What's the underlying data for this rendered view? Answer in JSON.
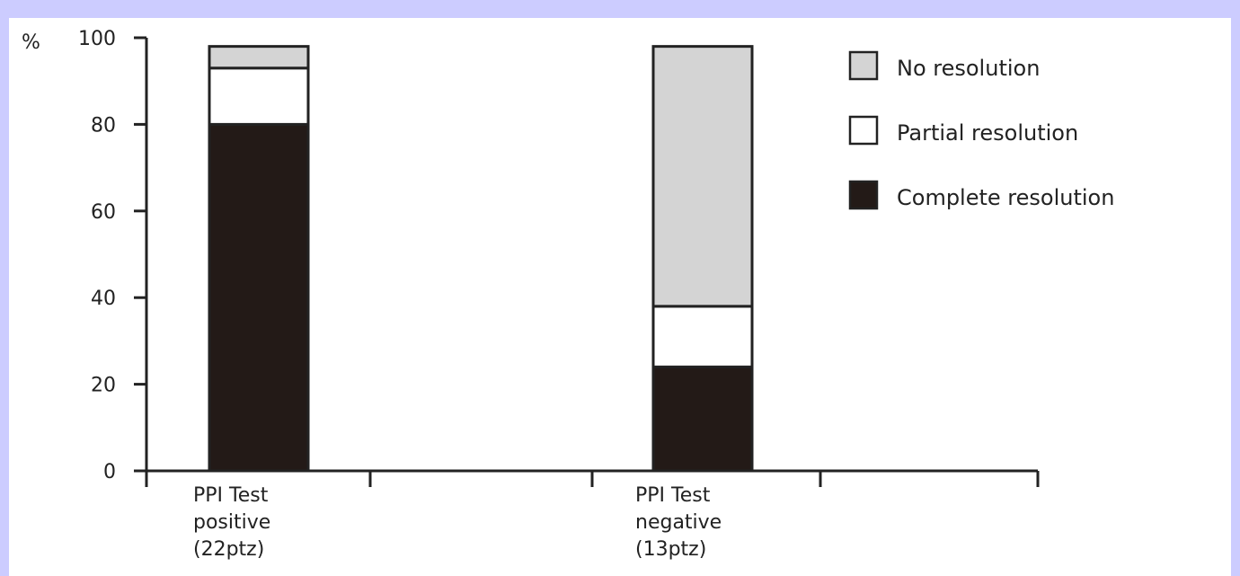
{
  "colors": {
    "page_background": "#ccccff",
    "plot_background": "#ffffff",
    "axis": "#222222",
    "bar_outline": "#222222"
  },
  "chart_data": {
    "type": "bar",
    "stacked": true,
    "ylabel": "%",
    "ylim": [
      0,
      100
    ],
    "yticks": [
      0,
      20,
      40,
      60,
      80,
      100
    ],
    "categories": [
      [
        "PPI Test",
        "positive",
        "(22ptz)"
      ],
      [
        "PPI Test",
        "negative",
        "(13ptz)"
      ]
    ],
    "series": [
      {
        "name": "Complete resolution",
        "color": "#231a17",
        "values": [
          80,
          24
        ]
      },
      {
        "name": "Partial resolution",
        "color": "#ffffff",
        "values": [
          13,
          14
        ]
      },
      {
        "name": "No resolution",
        "color": "#d4d4d4",
        "values": [
          5,
          60
        ]
      }
    ],
    "legend": {
      "placement": "top-right",
      "order": [
        "No resolution",
        "Partial resolution",
        "Complete resolution"
      ]
    },
    "grid": false
  }
}
